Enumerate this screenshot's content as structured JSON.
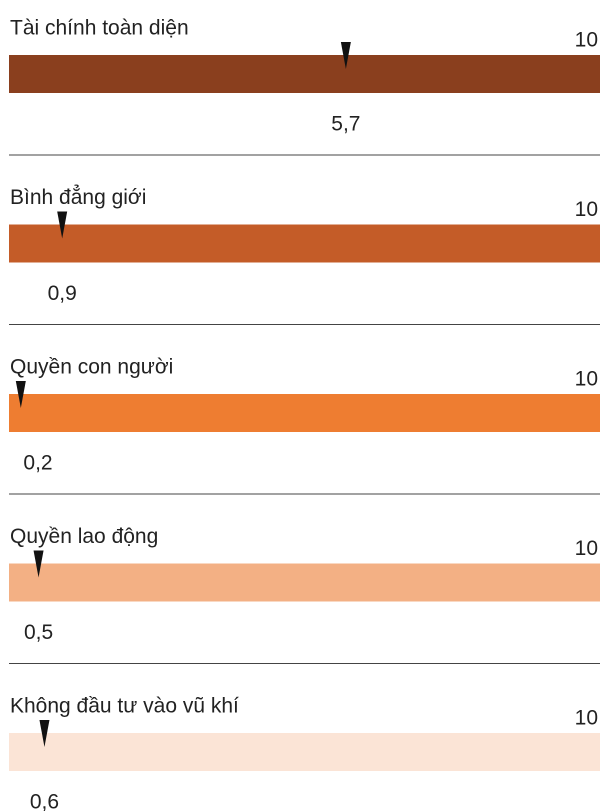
{
  "chart_data": [
    {
      "type": "gauge",
      "title": "Tài chính toàn diện",
      "xlim": [
        0,
        10
      ],
      "xticks": [
        10
      ],
      "values": [
        5.7
      ],
      "value_labels": [
        "5,7"
      ],
      "color": "#8a3f1e"
    },
    {
      "type": "gauge",
      "title": "Bình đẳng giới",
      "xlim": [
        0,
        10
      ],
      "xticks": [
        10
      ],
      "values": [
        0.9
      ],
      "value_labels": [
        "0,9"
      ],
      "color": "#c45c28"
    },
    {
      "type": "gauge",
      "title": "Quyền con người",
      "xlim": [
        0,
        10
      ],
      "xticks": [
        10
      ],
      "values": [
        0.2
      ],
      "value_labels": [
        "0,2"
      ],
      "color": "#ee7d31"
    },
    {
      "type": "gauge",
      "title": "Quyền lao động",
      "xlim": [
        0,
        10
      ],
      "xticks": [
        10
      ],
      "values": [
        0.5
      ],
      "value_labels": [
        "0,5"
      ],
      "color": "#f3b084"
    },
    {
      "type": "gauge",
      "title": "Không đầu tư vào vũ khí",
      "xlim": [
        0,
        10
      ],
      "xticks": [
        10
      ],
      "values": [
        0.6
      ],
      "value_labels": [
        "0,6"
      ],
      "color": "#fbe4d6"
    }
  ]
}
